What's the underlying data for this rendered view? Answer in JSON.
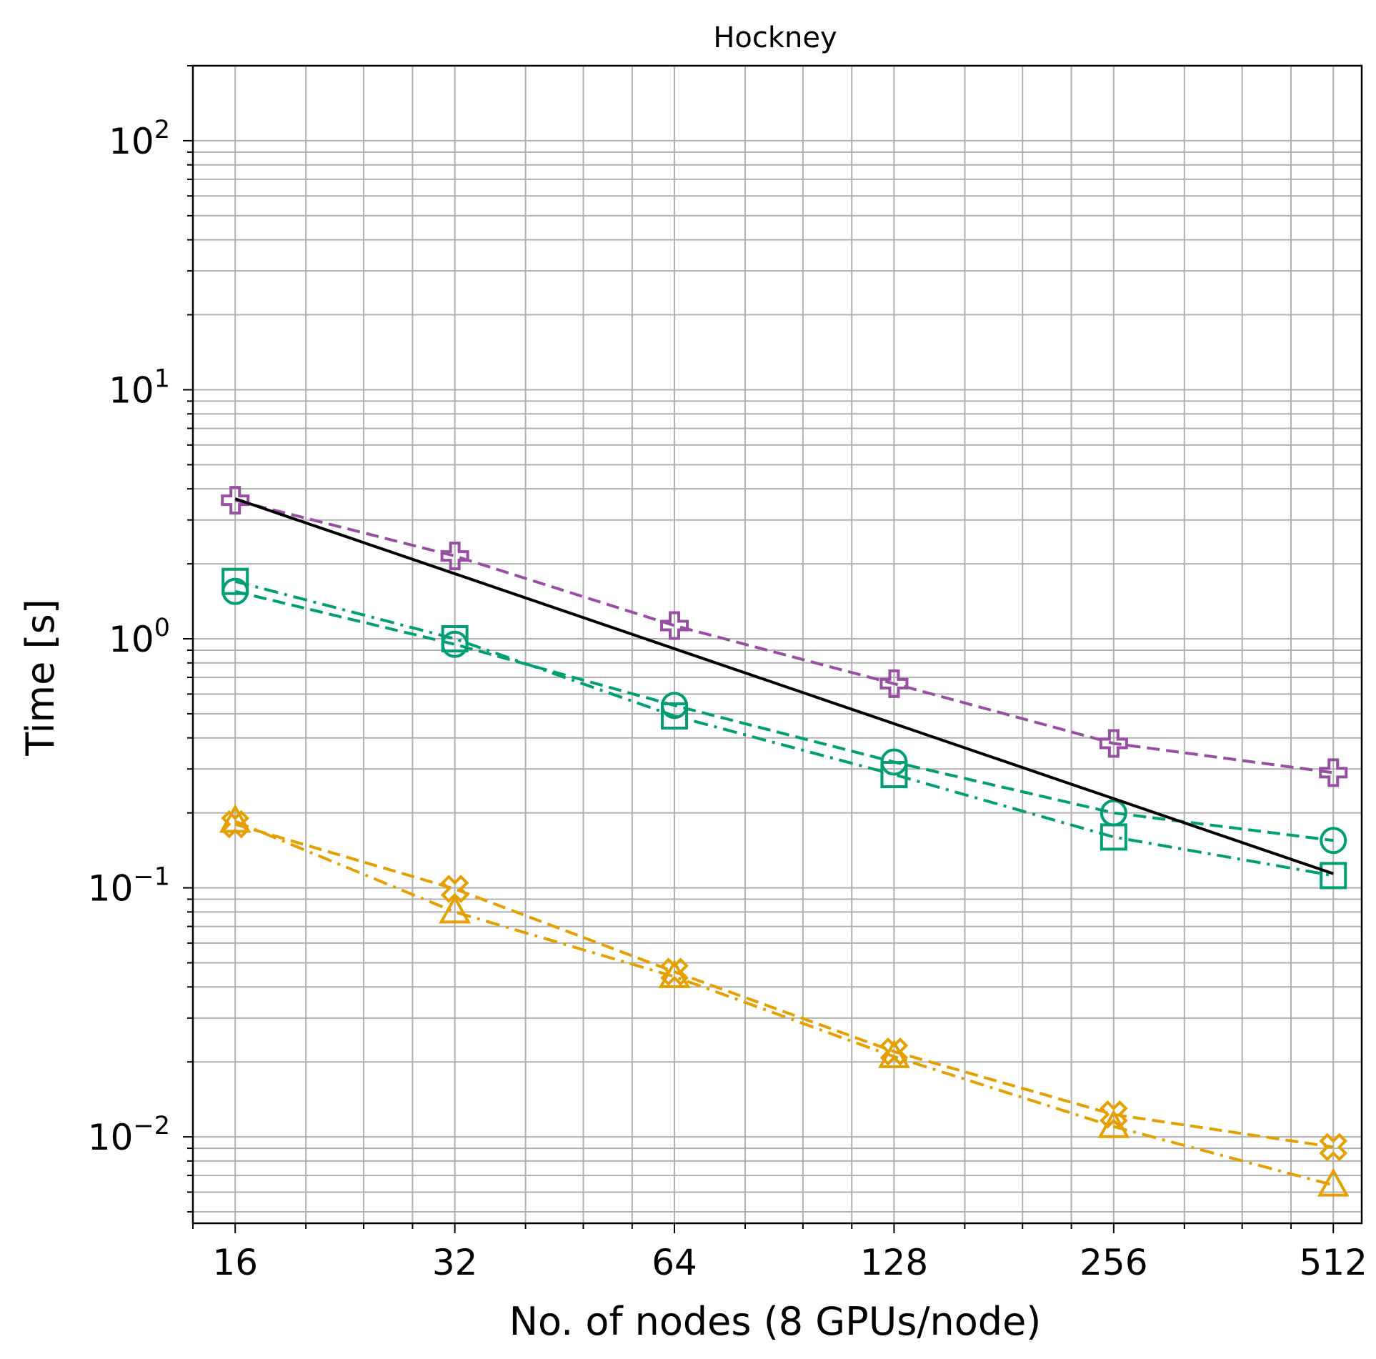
{
  "chart_data": {
    "type": "line",
    "title": "Hockney",
    "xlabel": "No. of nodes (8 GPUs/node)",
    "ylabel": "Time [s]",
    "x_scale": "log2",
    "y_scale": "log10",
    "xlim": [
      14,
      560
    ],
    "ylim": [
      0.0045,
      200
    ],
    "xticks": [
      16,
      32,
      64,
      128,
      256,
      512
    ],
    "xtick_labels": [
      "16",
      "32",
      "64",
      "128",
      "256",
      "512"
    ],
    "yticks": [
      0.01,
      0.1,
      1,
      10,
      100
    ],
    "ytick_labels": [
      {
        "base": "10",
        "exp": "−2"
      },
      {
        "base": "10",
        "exp": "−1"
      },
      {
        "base": "10",
        "exp": "0"
      },
      {
        "base": "10",
        "exp": "1"
      },
      {
        "base": "10",
        "exp": "2"
      }
    ],
    "grid": true,
    "x": [
      16,
      32,
      64,
      128,
      256,
      512
    ],
    "series": [
      {
        "color": "#984ea3",
        "linestyle": "dashed",
        "marker": "plus",
        "values": [
          3.6,
          2.15,
          1.13,
          0.66,
          0.38,
          0.29
        ]
      },
      {
        "color": "#009e73",
        "linestyle": "dashed",
        "marker": "circle",
        "values": [
          1.55,
          0.95,
          0.54,
          0.32,
          0.2,
          0.155
        ]
      },
      {
        "color": "#009e73",
        "linestyle": "dashdot",
        "marker": "square",
        "values": [
          1.7,
          1.0,
          0.49,
          0.285,
          0.16,
          0.112
        ]
      },
      {
        "color": "#e69f00",
        "linestyle": "dashed",
        "marker": "x",
        "values": [
          0.18,
          0.099,
          0.046,
          0.022,
          0.0123,
          0.0091
        ]
      },
      {
        "color": "#e69f00",
        "linestyle": "dashdot",
        "marker": "triangle",
        "values": [
          0.185,
          0.08,
          0.044,
          0.021,
          0.011,
          0.0064
        ]
      },
      {
        "color": "#000000",
        "linestyle": "solid",
        "marker": "none",
        "x": [
          16,
          512
        ],
        "values": [
          3.65,
          0.114
        ]
      }
    ]
  }
}
